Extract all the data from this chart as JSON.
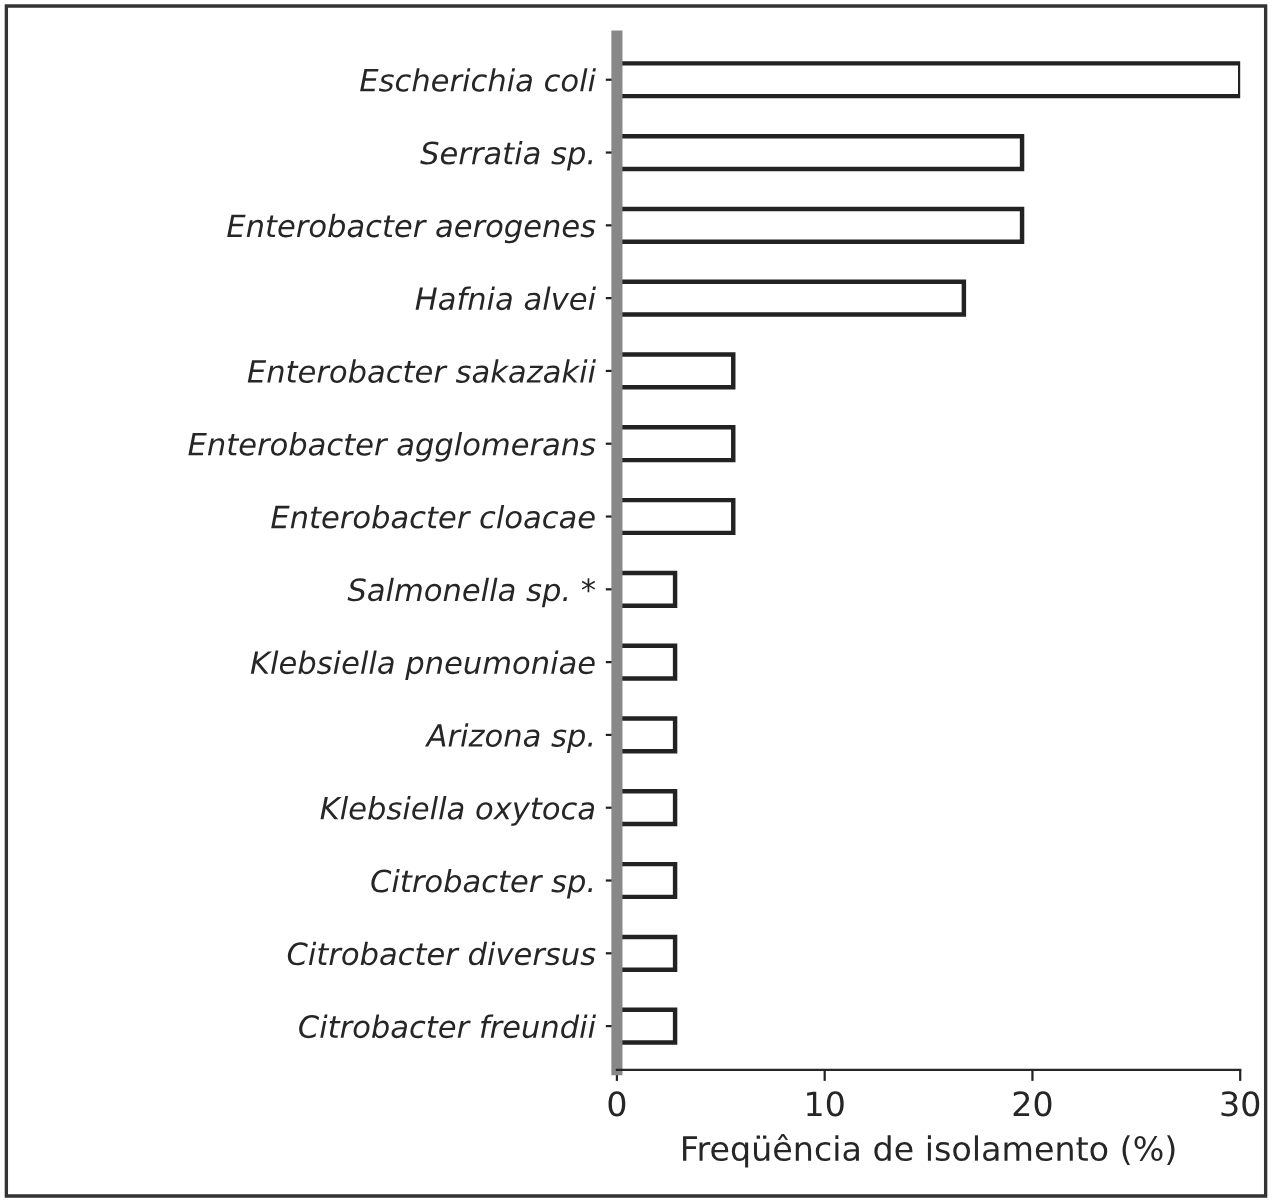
{
  "chart_data": {
    "type": "bar",
    "orientation": "horizontal",
    "categories": [
      "Escherichia coli",
      "Serratia sp.",
      "Enterobacter aerogenes",
      "Hafnia alvei",
      "Enterobacter sakazakii",
      "Enterobacter agglomerans",
      "Enterobacter cloacae",
      "Salmonella sp. *",
      "Klebsiella pneumoniae",
      "Arizona sp.",
      "Klebsiella oxytoca",
      "Citrobacter sp.",
      "Citrobacter diversus",
      "Citrobacter freundii"
    ],
    "values": [
      30,
      19.5,
      19.5,
      16.7,
      5.6,
      5.6,
      5.6,
      2.8,
      2.8,
      2.8,
      2.8,
      2.8,
      2.8,
      2.8
    ],
    "color": "#ffffff",
    "xlabel": "Freqüência de isolamento (%)",
    "xlim": [
      0,
      30
    ],
    "xticks": [
      0,
      10,
      20,
      30
    ],
    "grid": false
  }
}
